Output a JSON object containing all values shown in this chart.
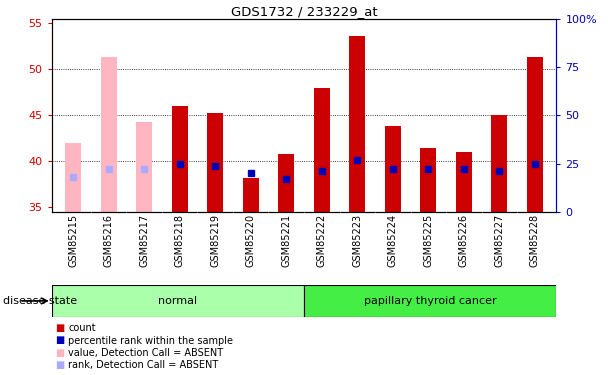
{
  "title": "GDS1732 / 233229_at",
  "samples": [
    "GSM85215",
    "GSM85216",
    "GSM85217",
    "GSM85218",
    "GSM85219",
    "GSM85220",
    "GSM85221",
    "GSM85222",
    "GSM85223",
    "GSM85224",
    "GSM85225",
    "GSM85226",
    "GSM85227",
    "GSM85228"
  ],
  "values": [
    42.0,
    51.3,
    44.3,
    46.0,
    45.2,
    38.2,
    40.8,
    48.0,
    53.6,
    43.8,
    41.5,
    41.0,
    45.0,
    51.3
  ],
  "ranks": [
    18,
    22,
    22,
    25,
    24,
    20,
    17,
    21,
    27,
    22,
    22,
    22,
    21,
    25
  ],
  "absent": [
    true,
    true,
    true,
    false,
    false,
    false,
    false,
    false,
    false,
    false,
    false,
    false,
    false,
    false
  ],
  "ylim_left": [
    34.5,
    55.5
  ],
  "ylim_right": [
    0,
    100
  ],
  "yticks_left": [
    35,
    40,
    45,
    50,
    55
  ],
  "yticks_right": [
    0,
    25,
    50,
    75,
    100
  ],
  "groups": [
    {
      "label": "normal",
      "start": 0,
      "end": 7,
      "color": "#AAFFAA"
    },
    {
      "label": "papillary thyroid cancer",
      "start": 7,
      "end": 14,
      "color": "#44EE44"
    }
  ],
  "bar_color_present": "#CC0000",
  "bar_color_absent": "#FFB6C1",
  "rank_color_present": "#0000BB",
  "rank_color_absent": "#AAAAFF",
  "axis_color_left": "#CC0000",
  "axis_color_right": "#0000BB",
  "legend_items": [
    {
      "color": "#CC0000",
      "label": "count"
    },
    {
      "color": "#0000BB",
      "label": "percentile rank within the sample"
    },
    {
      "color": "#FFB6C1",
      "label": "value, Detection Call = ABSENT"
    },
    {
      "color": "#AAAAFF",
      "label": "rank, Detection Call = ABSENT"
    }
  ],
  "disease_state_label": "disease state",
  "bar_width": 0.45
}
